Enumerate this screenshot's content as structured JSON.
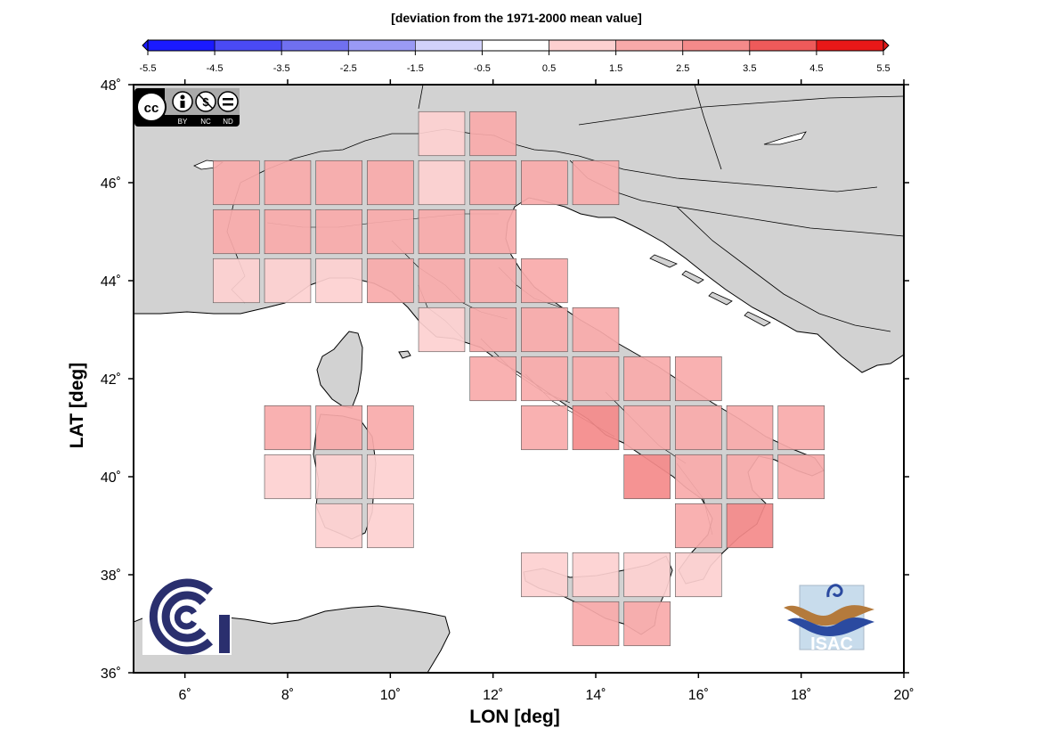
{
  "colorbar": {
    "title": "[deviation from the 1971-2000 mean value]",
    "ticks": [
      "-5.5",
      "-4.5",
      "-3.5",
      "-2.5",
      "-1.5",
      "-0.5",
      "0.5",
      "1.5",
      "2.5",
      "3.5",
      "4.5",
      "5.5"
    ],
    "bins": [
      {
        "from": -5.5,
        "to": -4.5,
        "color": "#1a1aff"
      },
      {
        "from": -4.5,
        "to": -3.5,
        "color": "#4a4af5"
      },
      {
        "from": -3.5,
        "to": -2.5,
        "color": "#7070f0"
      },
      {
        "from": -2.5,
        "to": -1.5,
        "color": "#9a9af5"
      },
      {
        "from": -1.5,
        "to": -0.5,
        "color": "#d2d2fa"
      },
      {
        "from": -0.5,
        "to": 0.5,
        "color": "#ffffff"
      },
      {
        "from": 0.5,
        "to": 1.5,
        "color": "#fdd0d0"
      },
      {
        "from": 1.5,
        "to": 2.5,
        "color": "#f8aaaa"
      },
      {
        "from": 2.5,
        "to": 3.5,
        "color": "#f48a8a"
      },
      {
        "from": 3.5,
        "to": 4.5,
        "color": "#ee5a5a"
      },
      {
        "from": 4.5,
        "to": 5.5,
        "color": "#e81818"
      }
    ]
  },
  "axes": {
    "xlabel": "LON [deg]",
    "ylabel": "LAT [deg]",
    "xlim": [
      5,
      20
    ],
    "ylim": [
      36,
      48
    ],
    "xticks": [
      {
        "v": 6,
        "label": "6˚"
      },
      {
        "v": 8,
        "label": "8˚"
      },
      {
        "v": 10,
        "label": "10˚"
      },
      {
        "v": 12,
        "label": "12˚"
      },
      {
        "v": 14,
        "label": "14˚"
      },
      {
        "v": 16,
        "label": "16˚"
      },
      {
        "v": 18,
        "label": "18˚"
      },
      {
        "v": 20,
        "label": "20˚"
      }
    ],
    "yticks": [
      {
        "v": 36,
        "label": "36˚"
      },
      {
        "v": 38,
        "label": "38˚"
      },
      {
        "v": 40,
        "label": "40˚"
      },
      {
        "v": 42,
        "label": "42˚"
      },
      {
        "v": 44,
        "label": "44˚"
      },
      {
        "v": 46,
        "label": "46˚"
      },
      {
        "v": 48,
        "label": "48˚"
      }
    ]
  },
  "chart_data": {
    "type": "heatmap",
    "title": "[deviation from the 1971-2000 mean value]",
    "xlabel": "LON [deg]",
    "ylabel": "LAT [deg]",
    "xlim": [
      5,
      20
    ],
    "ylim": [
      36,
      48
    ],
    "cell_size_deg": 1,
    "cells": [
      {
        "lon": 11,
        "lat": 47,
        "value": 1
      },
      {
        "lon": 12,
        "lat": 47,
        "value": 2
      },
      {
        "lon": 7,
        "lat": 46,
        "value": 2
      },
      {
        "lon": 8,
        "lat": 46,
        "value": 2
      },
      {
        "lon": 9,
        "lat": 46,
        "value": 2
      },
      {
        "lon": 10,
        "lat": 46,
        "value": 2
      },
      {
        "lon": 11,
        "lat": 46,
        "value": 1
      },
      {
        "lon": 12,
        "lat": 46,
        "value": 2
      },
      {
        "lon": 13,
        "lat": 46,
        "value": 2
      },
      {
        "lon": 14,
        "lat": 46,
        "value": 2
      },
      {
        "lon": 7,
        "lat": 45,
        "value": 2
      },
      {
        "lon": 8,
        "lat": 45,
        "value": 2
      },
      {
        "lon": 9,
        "lat": 45,
        "value": 2
      },
      {
        "lon": 10,
        "lat": 45,
        "value": 2
      },
      {
        "lon": 11,
        "lat": 45,
        "value": 2
      },
      {
        "lon": 12,
        "lat": 45,
        "value": 2
      },
      {
        "lon": 7,
        "lat": 44,
        "value": 1
      },
      {
        "lon": 8,
        "lat": 44,
        "value": 1
      },
      {
        "lon": 9,
        "lat": 44,
        "value": 1
      },
      {
        "lon": 10,
        "lat": 44,
        "value": 2
      },
      {
        "lon": 11,
        "lat": 44,
        "value": 2
      },
      {
        "lon": 12,
        "lat": 44,
        "value": 2
      },
      {
        "lon": 13,
        "lat": 44,
        "value": 2
      },
      {
        "lon": 11,
        "lat": 43,
        "value": 1
      },
      {
        "lon": 12,
        "lat": 43,
        "value": 2
      },
      {
        "lon": 13,
        "lat": 43,
        "value": 2
      },
      {
        "lon": 14,
        "lat": 43,
        "value": 2
      },
      {
        "lon": 12,
        "lat": 42,
        "value": 2
      },
      {
        "lon": 13,
        "lat": 42,
        "value": 2
      },
      {
        "lon": 14,
        "lat": 42,
        "value": 2
      },
      {
        "lon": 15,
        "lat": 42,
        "value": 2
      },
      {
        "lon": 16,
        "lat": 42,
        "value": 2
      },
      {
        "lon": 8,
        "lat": 41,
        "value": 2
      },
      {
        "lon": 9,
        "lat": 41,
        "value": 2
      },
      {
        "lon": 10,
        "lat": 41,
        "value": 2
      },
      {
        "lon": 13,
        "lat": 41,
        "value": 2
      },
      {
        "lon": 14,
        "lat": 41,
        "value": 3
      },
      {
        "lon": 15,
        "lat": 41,
        "value": 2
      },
      {
        "lon": 16,
        "lat": 41,
        "value": 2
      },
      {
        "lon": 17,
        "lat": 41,
        "value": 2
      },
      {
        "lon": 18,
        "lat": 41,
        "value": 2
      },
      {
        "lon": 8,
        "lat": 40,
        "value": 1
      },
      {
        "lon": 9,
        "lat": 40,
        "value": 1
      },
      {
        "lon": 10,
        "lat": 40,
        "value": 1
      },
      {
        "lon": 15,
        "lat": 40,
        "value": 3
      },
      {
        "lon": 16,
        "lat": 40,
        "value": 2
      },
      {
        "lon": 17,
        "lat": 40,
        "value": 2
      },
      {
        "lon": 18,
        "lat": 40,
        "value": 2
      },
      {
        "lon": 9,
        "lat": 39,
        "value": 1
      },
      {
        "lon": 10,
        "lat": 39,
        "value": 1
      },
      {
        "lon": 16,
        "lat": 39,
        "value": 2
      },
      {
        "lon": 17,
        "lat": 39,
        "value": 3
      },
      {
        "lon": 13,
        "lat": 38,
        "value": 1
      },
      {
        "lon": 14,
        "lat": 38,
        "value": 1
      },
      {
        "lon": 15,
        "lat": 38,
        "value": 1
      },
      {
        "lon": 16,
        "lat": 38,
        "value": 1
      },
      {
        "lon": 14,
        "lat": 37,
        "value": 2
      },
      {
        "lon": 15,
        "lat": 37,
        "value": 2
      }
    ]
  },
  "logos": {
    "cc_license": [
      "BY",
      "NC",
      "ND"
    ],
    "isac_label": "ISAC"
  }
}
